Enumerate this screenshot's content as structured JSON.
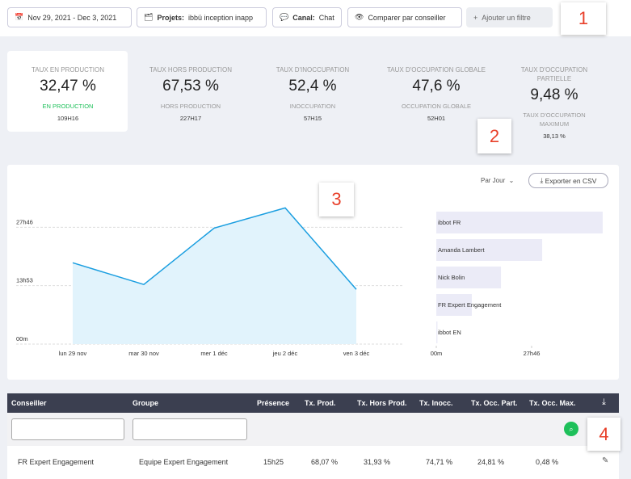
{
  "filters": {
    "date": "Nov 29, 2021 - Dec 3, 2021",
    "project_label": "Projets:",
    "project": "ibbü inception inapp",
    "channel_label": "Canal:",
    "channel": "Chat",
    "compare": "Comparer par conseiller",
    "add": "Ajouter un filtre"
  },
  "kpis": [
    {
      "label": "TAUX EN PRODUCTION",
      "value": "32,47 %",
      "sub_label": "EN PRODUCTION",
      "sub_value": "109H16"
    },
    {
      "label": "TAUX HORS PRODUCTION",
      "value": "67,53 %",
      "sub_label": "HORS PRODUCTION",
      "sub_value": "227H17"
    },
    {
      "label": "TAUX D'INOCCUPATION",
      "value": "52,4 %",
      "sub_label": "INOCCUPATION",
      "sub_value": "57H15"
    },
    {
      "label": "TAUX D'OCCUPATION GLOBALE",
      "value": "47,6 %",
      "sub_label": "OCCUPATION GLOBALE",
      "sub_value": "52H01"
    },
    {
      "label": "TAUX D'OCCUPATION PARTIELLE",
      "value": "9,48 %",
      "sub_label": "TAUX D'OCCUPATION MAXIMUM",
      "sub_value": "38,13 %"
    }
  ],
  "chart_controls": {
    "period": "Par Jour",
    "export": "Exporter en CSV"
  },
  "chart_data": [
    {
      "type": "line",
      "categories": [
        "lun 29 nov",
        "mar 30 nov",
        "mer 1 déc",
        "jeu 2 déc",
        "ven 3 déc"
      ],
      "series": [
        {
          "color": "#1a9ee0",
          "values": [
            1160,
            850,
            1654,
            1942,
            781
          ]
        }
      ],
      "ylim": [
        0,
        2200
      ],
      "yticks": [
        {
          "value": 0,
          "label": "00m"
        },
        {
          "value": 833,
          "label": "13h53"
        },
        {
          "value": 1666,
          "label": "27h46"
        }
      ],
      "grid": true
    },
    {
      "type": "bar",
      "orientation": "horizontal",
      "categories": [
        "ibbot FR",
        "Amanda Lambert",
        "Nick Bolin",
        "FR Expert Engagement",
        "ibbot EN"
      ],
      "values": [
        2908,
        1850,
        1130,
        621,
        20
      ],
      "color": "#ebebf7",
      "xlim": [
        0,
        3000
      ],
      "xticks": [
        {
          "value": 0,
          "label": "00m"
        },
        {
          "value": 1666,
          "label": "27h46"
        }
      ]
    }
  ],
  "table": {
    "columns": [
      "Conseiller",
      "Groupe",
      "Présence",
      "Tx. Prod.",
      "Tx. Hors Prod.",
      "Tx. Inocc.",
      "Tx. Occ. Part.",
      "Tx. Occ. Max."
    ],
    "rows": [
      [
        "FR Expert Engagement",
        "Equipe Expert Engagement",
        "15h25",
        "68,07 %",
        "31,93 %",
        "74,71 %",
        "24,81 %",
        "0,48 %"
      ]
    ]
  },
  "annotations": [
    "1",
    "2",
    "3",
    "4"
  ]
}
